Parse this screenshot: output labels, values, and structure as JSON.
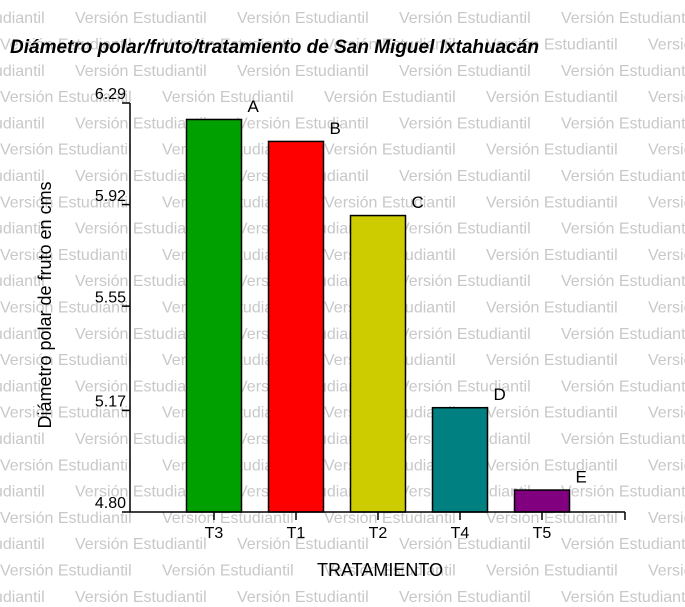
{
  "watermark": "Versión Estudiantil",
  "chart_data": {
    "type": "bar",
    "title": "Diámetro polar/fruto/tratamiento de San Miguel Ixtahuacán",
    "ylabel": "Diámetro polar de fruto en cms",
    "xlabel": "TRATAMIENTO",
    "categories": [
      "T3",
      "T1",
      "T2",
      "T4",
      "T5"
    ],
    "values": [
      6.23,
      6.15,
      5.88,
      5.18,
      4.88
    ],
    "value_labels": [
      "A",
      "B",
      "C",
      "D",
      "E"
    ],
    "colors": [
      "#00a000",
      "#ff0000",
      "#cccc00",
      "#008080",
      "#800080"
    ],
    "ylim": [
      4.8,
      6.29
    ],
    "yticks": [
      {
        "value": 4.8,
        "label": "4.80"
      },
      5.17,
      5.55,
      5.92,
      6.29
    ]
  }
}
